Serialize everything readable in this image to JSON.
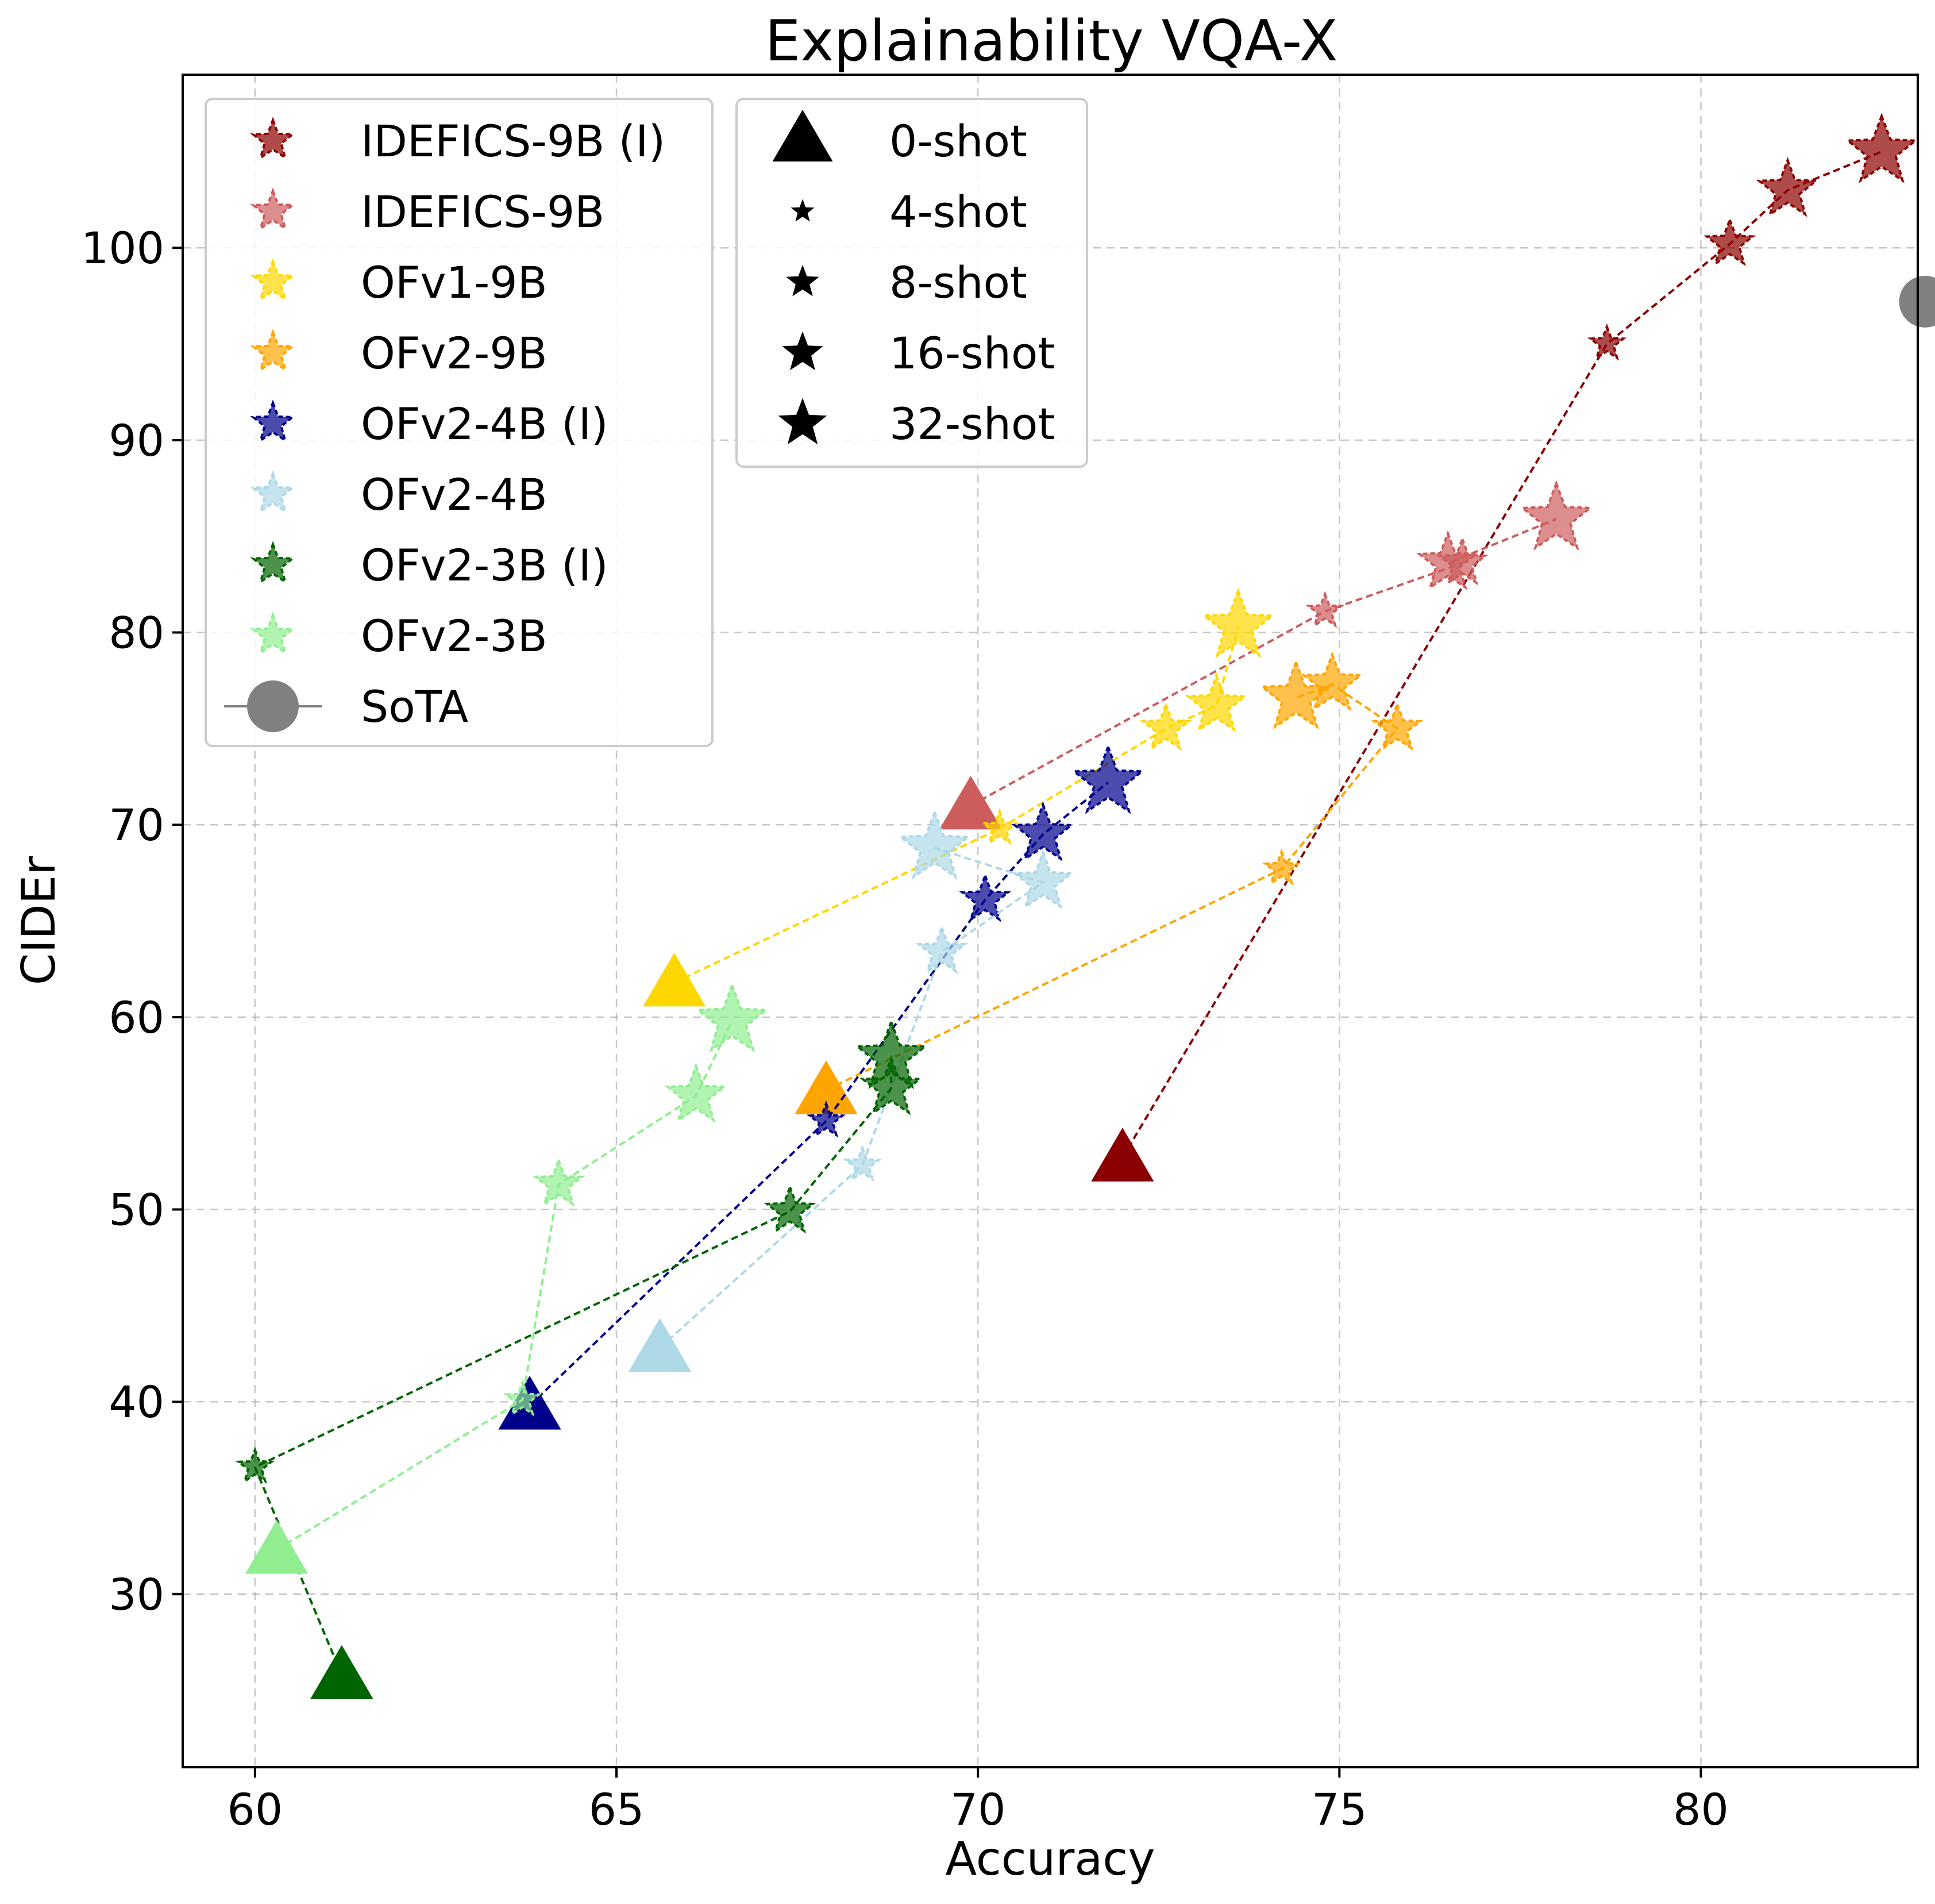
{
  "chart_data": {
    "type": "scatter",
    "title": "Explainability VQA-X",
    "xlabel": "Accuracy",
    "ylabel": "CIDEr",
    "xlim": [
      59,
      83
    ],
    "ylim": [
      21,
      109
    ],
    "xticks": [
      60,
      65,
      70,
      75,
      80
    ],
    "yticks": [
      30,
      40,
      50,
      60,
      70,
      80,
      90,
      100
    ],
    "grid": true,
    "series": [
      {
        "name": "IDEFICS-9B (I)",
        "color": "#8b0000",
        "points": [
          {
            "x": 72.0,
            "y": 52.7,
            "shot": "0-shot"
          },
          {
            "x": 78.7,
            "y": 95.0,
            "shot": "4-shot"
          },
          {
            "x": 80.4,
            "y": 100.2,
            "shot": "8-shot"
          },
          {
            "x": 81.2,
            "y": 103.0,
            "shot": "16-shot"
          },
          {
            "x": 82.5,
            "y": 105.0,
            "shot": "32-shot"
          }
        ]
      },
      {
        "name": "IDEFICS-9B",
        "color": "#cd5c5c",
        "points": [
          {
            "x": 69.9,
            "y": 71.0,
            "shot": "0-shot"
          },
          {
            "x": 74.8,
            "y": 81.1,
            "shot": "4-shot"
          },
          {
            "x": 76.7,
            "y": 83.6,
            "shot": "8-shot"
          },
          {
            "x": 76.5,
            "y": 83.6,
            "shot": "16-shot"
          },
          {
            "x": 78.0,
            "y": 85.9,
            "shot": "32-shot"
          }
        ]
      },
      {
        "name": "OFv1-9B",
        "color": "#ffd700",
        "points": [
          {
            "x": 65.8,
            "y": 61.8,
            "shot": "0-shot"
          },
          {
            "x": 70.3,
            "y": 69.8,
            "shot": "4-shot"
          },
          {
            "x": 72.6,
            "y": 75.0,
            "shot": "8-shot"
          },
          {
            "x": 73.3,
            "y": 76.2,
            "shot": "16-shot"
          },
          {
            "x": 73.6,
            "y": 80.3,
            "shot": "32-shot"
          }
        ]
      },
      {
        "name": "OFv2-9B",
        "color": "#ffa500",
        "points": [
          {
            "x": 67.9,
            "y": 56.2,
            "shot": "0-shot"
          },
          {
            "x": 74.2,
            "y": 67.7,
            "shot": "4-shot"
          },
          {
            "x": 75.8,
            "y": 75.0,
            "shot": "8-shot"
          },
          {
            "x": 74.9,
            "y": 77.3,
            "shot": "16-shot"
          },
          {
            "x": 74.4,
            "y": 76.6,
            "shot": "32-shot"
          }
        ]
      },
      {
        "name": "OFv2-4B (I)",
        "color": "#00008b",
        "points": [
          {
            "x": 63.8,
            "y": 39.8,
            "shot": "0-shot"
          },
          {
            "x": 67.9,
            "y": 54.6,
            "shot": "4-shot"
          },
          {
            "x": 70.1,
            "y": 66.1,
            "shot": "8-shot"
          },
          {
            "x": 70.9,
            "y": 69.5,
            "shot": "16-shot"
          },
          {
            "x": 71.8,
            "y": 72.2,
            "shot": "32-shot"
          }
        ]
      },
      {
        "name": "OFv2-4B",
        "color": "#add8e6",
        "points": [
          {
            "x": 65.6,
            "y": 42.8,
            "shot": "0-shot"
          },
          {
            "x": 68.4,
            "y": 52.3,
            "shot": "4-shot"
          },
          {
            "x": 69.5,
            "y": 63.4,
            "shot": "8-shot"
          },
          {
            "x": 70.9,
            "y": 67.0,
            "shot": "16-shot"
          },
          {
            "x": 69.4,
            "y": 68.8,
            "shot": "32-shot"
          }
        ]
      },
      {
        "name": "OFv2-3B (I)",
        "color": "#006400",
        "points": [
          {
            "x": 61.2,
            "y": 25.8,
            "shot": "0-shot"
          },
          {
            "x": 60.0,
            "y": 36.6,
            "shot": "4-shot"
          },
          {
            "x": 67.4,
            "y": 49.9,
            "shot": "8-shot"
          },
          {
            "x": 68.8,
            "y": 56.3,
            "shot": "16-shot"
          },
          {
            "x": 68.8,
            "y": 57.9,
            "shot": "32-shot"
          }
        ]
      },
      {
        "name": "OFv2-3B",
        "color": "#90ee90",
        "points": [
          {
            "x": 60.3,
            "y": 32.3,
            "shot": "0-shot"
          },
          {
            "x": 63.7,
            "y": 40.1,
            "shot": "4-shot"
          },
          {
            "x": 64.2,
            "y": 51.3,
            "shot": "8-shot"
          },
          {
            "x": 66.1,
            "y": 55.9,
            "shot": "16-shot"
          },
          {
            "x": 66.6,
            "y": 59.8,
            "shot": "32-shot"
          }
        ]
      }
    ],
    "reference": {
      "name": "SoTA",
      "color": "#808080",
      "x": 83.1,
      "y": 97.2
    },
    "legend": {
      "placement": "top-left",
      "models": [
        "IDEFICS-9B (I)",
        "IDEFICS-9B",
        "OFv1-9B",
        "OFv2-9B",
        "OFv2-4B (I)",
        "OFv2-4B",
        "OFv2-3B (I)",
        "OFv2-3B",
        "SoTA"
      ],
      "shots": [
        "0-shot",
        "4-shot",
        "8-shot",
        "16-shot",
        "32-shot"
      ]
    }
  }
}
